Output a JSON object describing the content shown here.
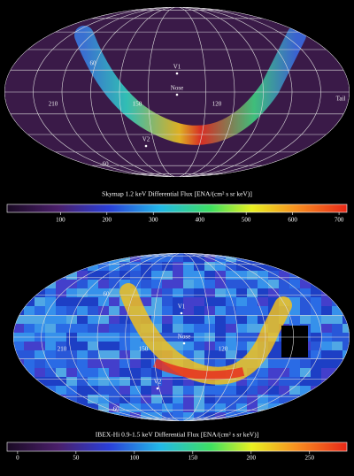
{
  "panels": [
    {
      "title": "Skymap 1.2 keV Differential Flux [ENA/(cm² s sr keV)]",
      "colorbar": {
        "lim": [
          -15,
          717
        ],
        "ticks": [
          100,
          200,
          300,
          400,
          500,
          600,
          700
        ]
      },
      "labels": {
        "v1": "V1",
        "nose": "Nose",
        "v2": "V2",
        "tail": "Tail",
        "lat_n": "60",
        "lat_s": "-60",
        "lon_a": "150",
        "lon_b": "120",
        "lon_c": "210"
      }
    },
    {
      "title": "IBEX-Hi 0.9-1.5 keV Differential Flux [ENA/(cm² s sr keV)]",
      "colorbar": {
        "lim": [
          -9,
          282
        ],
        "ticks": [
          0,
          50,
          100,
          150,
          200,
          250
        ]
      },
      "labels": {
        "v1": "V1",
        "nose": "Nose",
        "v2": "V2",
        "lat_n": "60",
        "lat_s": "-60",
        "lon_a": "150",
        "lon_b": "120",
        "lon_c": "210"
      }
    }
  ]
}
